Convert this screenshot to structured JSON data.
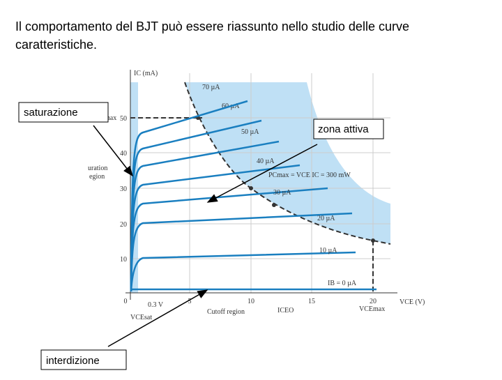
{
  "slide": {
    "text_line1": "Il comportamento del BJT può essere riassunto nello studio delle curve",
    "text_line2": "caratteristiche."
  },
  "figure": {
    "y_axis_label": "IC (mA)",
    "x_axis_label": "VCE (V)",
    "y_tick_labels": [
      "10",
      "20",
      "30",
      "40",
      "50"
    ],
    "x_tick_labels": [
      "0",
      "5",
      "10",
      "15",
      "20"
    ],
    "curve_labels": [
      "10 µA",
      "20 µA",
      "30 µA",
      "40 µA",
      "50 µA",
      "60 µA",
      "70 µA"
    ],
    "ib_zero_label": "IB = 0 µA",
    "icmax_label": "ICmax",
    "power_label": "PCmax = VCE IC = 300 mW",
    "vcesat_value": "0.3 V",
    "vcesat_label": "VCEsat",
    "cutoff_label": "Cutoff region",
    "iceo_label": "ICEO",
    "vcemax_label": "VCEmax",
    "saturation_label_line1": "uration",
    "saturation_label_line2": "egion"
  },
  "callouts": {
    "saturation": "saturazione",
    "active": "zona attiva",
    "cutoff": "interdizione"
  }
}
